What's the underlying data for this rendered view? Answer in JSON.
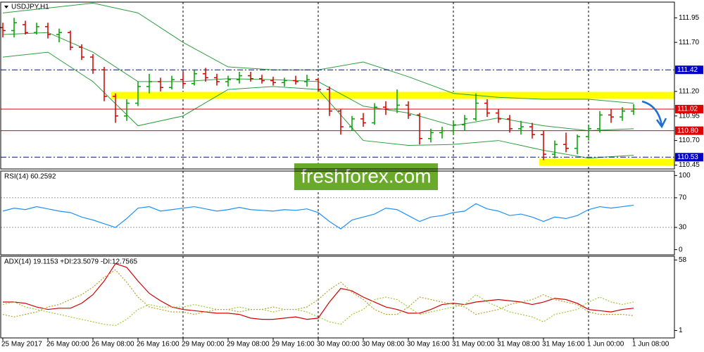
{
  "chart_data": [
    {
      "type": "ohlc",
      "title": "USDJPY,H1",
      "open": [
        111.85,
        111.82,
        111.88,
        111.8,
        111.86,
        111.78,
        111.8,
        111.65,
        111.55,
        111.42,
        111.15,
        110.95,
        111.08,
        111.25,
        111.3,
        111.24,
        111.32,
        111.28,
        111.38,
        111.34,
        111.3,
        111.32,
        111.36,
        111.33,
        111.31,
        111.29,
        111.31,
        111.3,
        111.32,
        111.22,
        111.0,
        110.84,
        110.92,
        110.88,
        111.04,
        111.02,
        111.06,
        110.96,
        110.72,
        110.78,
        110.8,
        110.86,
        110.92,
        111.08,
        110.98,
        110.92,
        110.82,
        110.84,
        110.76,
        110.56,
        110.66,
        110.62,
        110.74,
        110.82,
        110.96,
        110.94,
        111.0
      ],
      "high": [
        111.9,
        111.95,
        111.92,
        111.9,
        111.9,
        111.84,
        111.82,
        111.68,
        111.58,
        111.45,
        111.18,
        111.12,
        111.3,
        111.38,
        111.34,
        111.36,
        111.4,
        111.42,
        111.44,
        111.38,
        111.36,
        111.4,
        111.4,
        111.37,
        111.35,
        111.34,
        111.36,
        111.37,
        111.34,
        111.25,
        111.02,
        110.95,
        110.98,
        111.08,
        111.1,
        111.22,
        111.1,
        110.98,
        110.82,
        110.84,
        110.9,
        110.96,
        111.18,
        111.12,
        111.02,
        110.96,
        110.9,
        110.88,
        110.8,
        110.7,
        110.78,
        110.76,
        110.86,
        111.0,
        111.02,
        111.04,
        111.07
      ],
      "low": [
        111.75,
        111.75,
        111.78,
        111.78,
        111.74,
        111.7,
        111.62,
        111.52,
        111.38,
        111.1,
        110.88,
        110.9,
        111.05,
        111.18,
        111.2,
        111.22,
        111.25,
        111.26,
        111.3,
        111.26,
        111.25,
        111.28,
        111.3,
        111.28,
        111.26,
        111.25,
        111.27,
        111.25,
        111.2,
        110.95,
        110.76,
        110.8,
        110.84,
        110.86,
        110.96,
        110.98,
        110.92,
        110.66,
        110.68,
        110.72,
        110.76,
        110.8,
        110.9,
        110.94,
        110.88,
        110.78,
        110.76,
        110.72,
        110.5,
        110.52,
        110.58,
        110.56,
        110.7,
        110.78,
        110.88,
        110.9,
        110.96
      ],
      "close": [
        111.82,
        111.9,
        111.8,
        111.86,
        111.78,
        111.8,
        111.65,
        111.55,
        111.42,
        111.15,
        110.95,
        111.08,
        111.25,
        111.3,
        111.24,
        111.32,
        111.28,
        111.38,
        111.34,
        111.3,
        111.32,
        111.36,
        111.33,
        111.31,
        111.29,
        111.31,
        111.3,
        111.32,
        111.22,
        111.0,
        110.84,
        110.92,
        110.88,
        111.04,
        111.02,
        111.06,
        110.96,
        110.72,
        110.78,
        110.8,
        110.86,
        110.92,
        111.08,
        110.98,
        110.92,
        110.82,
        110.84,
        110.76,
        110.56,
        110.66,
        110.62,
        110.74,
        110.82,
        110.96,
        110.94,
        111.0,
        111.02
      ],
      "up_color": "#00a000",
      "down_color": "#d00000",
      "bands": {
        "color": "#2e9e3e",
        "x": [
          0,
          4,
          8,
          12,
          16,
          20,
          24,
          28,
          32,
          36,
          40,
          44,
          48,
          52,
          56
        ],
        "upper": [
          112.0,
          112.05,
          112.1,
          112.0,
          111.7,
          111.45,
          111.42,
          111.42,
          111.5,
          111.35,
          111.18,
          111.14,
          111.12,
          111.12,
          111.08
        ],
        "middle": [
          111.78,
          111.8,
          111.6,
          111.3,
          111.3,
          111.33,
          111.32,
          111.3,
          111.05,
          110.98,
          110.85,
          110.93,
          110.85,
          110.8,
          110.82
        ],
        "lower": [
          111.55,
          111.6,
          111.3,
          110.85,
          110.95,
          111.22,
          111.25,
          111.22,
          110.7,
          110.65,
          110.66,
          110.7,
          110.6,
          110.52,
          110.55
        ]
      },
      "ylim": [
        110.41,
        112.11
      ],
      "yticks": [
        110.45,
        {
          "value": 110.7,
          "label": "110.70"
        },
        110.95,
        {
          "value": 111.2,
          "label": "111.20"
        },
        {
          "value": 111.7,
          "label": "111.70"
        },
        111.95
      ],
      "vgrid": [
        16,
        28,
        40,
        52
      ],
      "zones": [
        {
          "value": 111.16,
          "from": 10,
          "color": "#ffff00"
        },
        {
          "value": 110.48,
          "from": 48,
          "color": "#ffff00"
        }
      ],
      "levels": [
        {
          "value": 111.42,
          "color": "#0000c8",
          "style": "dashdot"
        },
        {
          "value": 111.02,
          "color": "#e00000",
          "style": "solid"
        },
        {
          "value": 110.8,
          "label": "110.80",
          "color": "#e00000",
          "style": "solid"
        },
        {
          "value": 110.53,
          "color": "#0000c8",
          "style": "dashdot"
        }
      ],
      "watermark": "freshforex.com"
    },
    {
      "type": "line",
      "label": "RSI(14) 60.2592",
      "color": "#1e90ff",
      "values": [
        52,
        56,
        54,
        58,
        55,
        52,
        50,
        44,
        40,
        35,
        30,
        42,
        56,
        58,
        52,
        54,
        56,
        58,
        55,
        52,
        54,
        57,
        54,
        53,
        52,
        54,
        53,
        55,
        50,
        38,
        28,
        40,
        44,
        48,
        56,
        54,
        46,
        38,
        44,
        46,
        50,
        52,
        62,
        55,
        52,
        46,
        48,
        44,
        38,
        44,
        42,
        46,
        54,
        58,
        56,
        58,
        60
      ],
      "ylim": [
        -7,
        106
      ],
      "yticks": [
        0,
        30,
        70,
        100
      ],
      "levels": [
        30,
        70
      ]
    },
    {
      "type": "line",
      "label": "ADX(14) 19.1153 +DI:23.5079 -DI:12.7565",
      "series": [
        {
          "color": "#d00000",
          "dash": "none",
          "values": [
            24,
            24,
            23,
            20,
            18,
            19,
            19,
            23,
            30,
            41,
            55,
            52,
            41,
            31,
            25,
            20,
            18,
            17,
            16,
            15,
            15,
            14,
            11,
            10,
            10,
            11,
            12,
            10,
            11,
            24,
            35,
            33,
            28,
            24,
            20,
            18,
            15,
            15,
            18,
            22,
            23,
            22,
            24,
            25,
            26,
            25,
            24,
            22,
            24,
            27,
            26,
            23,
            18,
            17,
            16,
            18,
            19
          ]
        },
        {
          "color": "#9acd32",
          "dash": "2,2",
          "values": [
            22,
            24,
            20,
            18,
            16,
            14,
            12,
            10,
            8,
            6,
            5,
            10,
            18,
            22,
            20,
            20,
            20,
            22,
            20,
            18,
            18,
            20,
            18,
            18,
            16,
            18,
            18,
            16,
            12,
            8,
            6,
            14,
            18,
            26,
            28,
            26,
            20,
            14,
            16,
            18,
            20,
            22,
            30,
            24,
            20,
            16,
            14,
            12,
            8,
            14,
            16,
            18,
            24,
            28,
            24,
            22,
            24
          ]
        },
        {
          "color": "#b8a030",
          "dash": "2,2",
          "values": [
            14,
            12,
            14,
            16,
            20,
            22,
            26,
            30,
            36,
            44,
            50,
            40,
            28,
            20,
            18,
            16,
            16,
            14,
            16,
            18,
            18,
            16,
            18,
            18,
            20,
            18,
            18,
            20,
            26,
            34,
            40,
            32,
            26,
            18,
            14,
            14,
            20,
            28,
            26,
            24,
            22,
            20,
            14,
            16,
            18,
            22,
            24,
            26,
            30,
            26,
            24,
            22,
            16,
            14,
            14,
            14,
            13
          ]
        }
      ],
      "ylim": [
        -5,
        61
      ],
      "yticks": [
        1,
        58
      ],
      "xticks": [
        {
          "value": 0,
          "label": "25 May 2017"
        },
        {
          "value": 4,
          "label": "26 May 00:00"
        },
        {
          "value": 8,
          "label": "26 May 08:00"
        },
        {
          "value": 12,
          "label": "26 May 16:00"
        },
        {
          "value": 16,
          "label": "29 May 00:00"
        },
        {
          "value": 20,
          "label": "29 May 08:00"
        },
        {
          "value": 24,
          "label": "29 May 16:00"
        },
        {
          "value": 28,
          "label": "30 May 00:00"
        },
        {
          "value": 32,
          "label": "30 May 08:00"
        },
        {
          "value": 36,
          "label": "30 May 16:00"
        },
        {
          "value": 40,
          "label": "31 May 00:00"
        },
        {
          "value": 44,
          "label": "31 May 08:00"
        },
        {
          "value": 48,
          "label": "31 May 16:00"
        },
        {
          "value": 52,
          "label": "1 Jun 00:00"
        },
        {
          "value": 56,
          "label": "1 Jun 08:00"
        }
      ]
    }
  ]
}
